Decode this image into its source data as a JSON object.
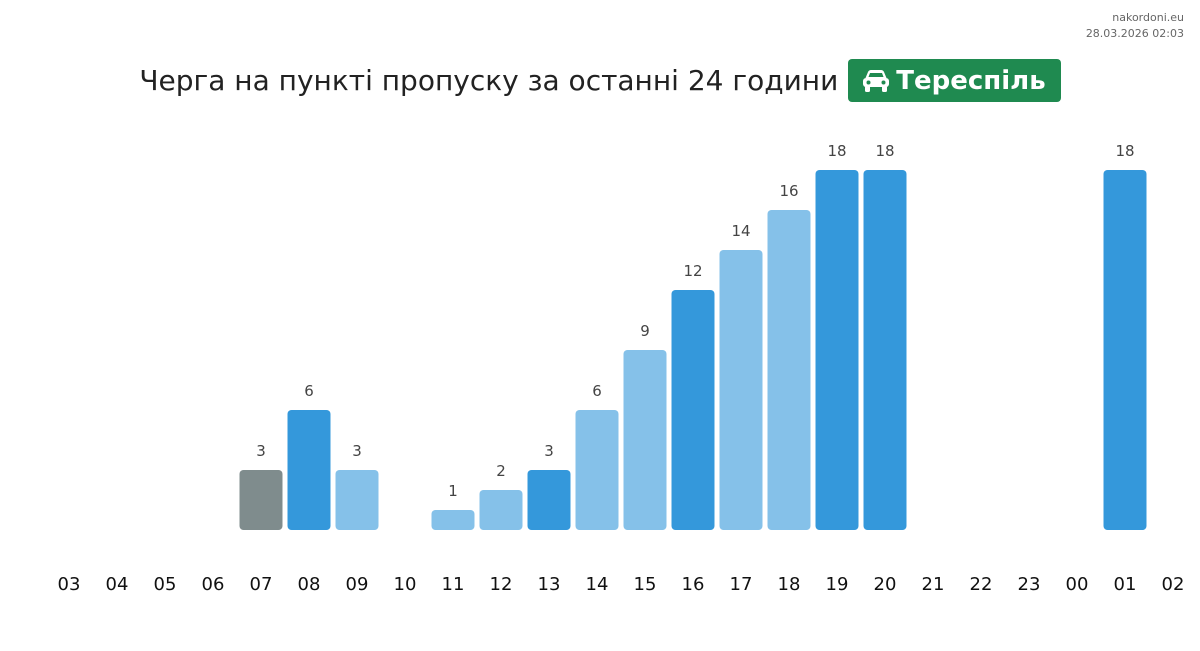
{
  "watermark": {
    "site": "nakordoni.eu",
    "timestamp": "28.03.2026 02:03"
  },
  "header": {
    "title": "Черга на пункті пропуску за останні 24 години",
    "crossing_name": "Тереспіль",
    "crossing_icon": "car-icon",
    "badge_color": "#1f8a50"
  },
  "chart_data": {
    "type": "bar",
    "categories": [
      "03",
      "04",
      "05",
      "06",
      "07",
      "08",
      "09",
      "10",
      "11",
      "12",
      "13",
      "14",
      "15",
      "16",
      "17",
      "18",
      "19",
      "20",
      "21",
      "22",
      "23",
      "00",
      "01",
      "02"
    ],
    "values": [
      0,
      0,
      0,
      0,
      3,
      6,
      3,
      0,
      1,
      2,
      3,
      6,
      9,
      12,
      14,
      16,
      18,
      18,
      0,
      0,
      0,
      0,
      18,
      0
    ],
    "bar_colors": [
      "",
      "",
      "",
      "",
      "#7f8c8d",
      "#3498db",
      "#85c1e9",
      "",
      "#85c1e9",
      "#85c1e9",
      "#3498db",
      "#85c1e9",
      "#85c1e9",
      "#3498db",
      "#85c1e9",
      "#85c1e9",
      "#3498db",
      "#3498db",
      "",
      "",
      "",
      "",
      "#3498db",
      ""
    ],
    "ylim": [
      0,
      18
    ],
    "grid": false,
    "title": "Черга на пункті пропуску за останні 24 години"
  }
}
